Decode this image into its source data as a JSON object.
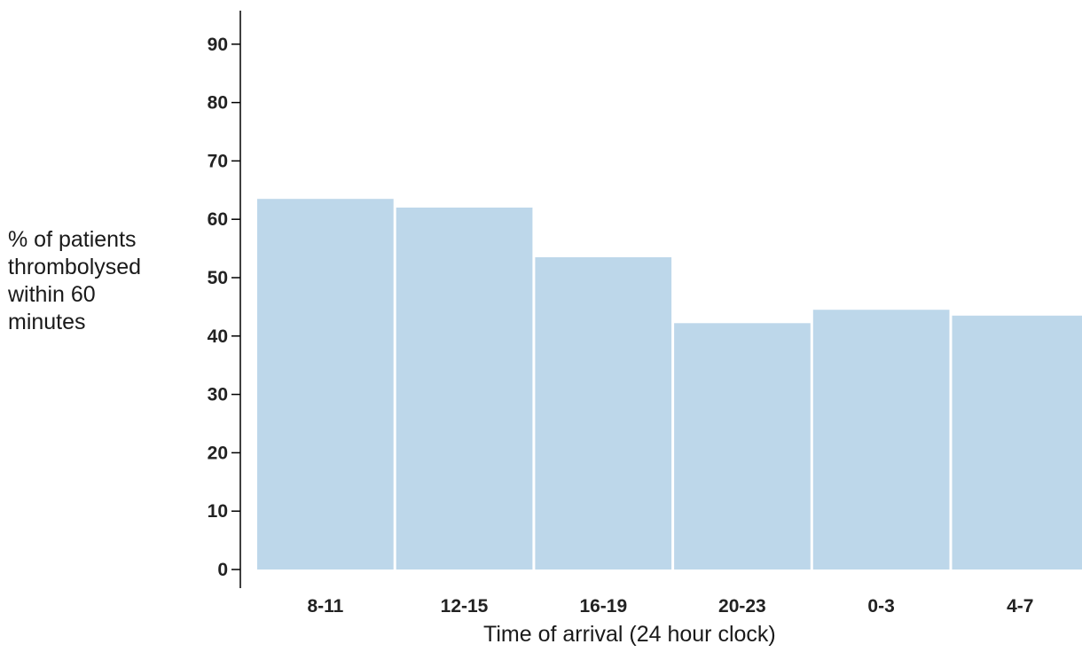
{
  "chart_data": {
    "type": "bar",
    "categories": [
      "8-11",
      "12-15",
      "16-19",
      "20-23",
      "0-3",
      "4-7"
    ],
    "values": [
      63.5,
      62.0,
      53.5,
      42.2,
      44.5,
      43.5
    ],
    "xlabel": "Time of arrival (24 hour clock)",
    "ylabel": "% of patients\nthrombolysed\nwithin 60\nminutes",
    "ylim": [
      0,
      95
    ],
    "yticks": [
      0,
      10,
      20,
      30,
      40,
      50,
      60,
      70,
      80,
      90
    ],
    "grid": false,
    "bar_color": "#bdd7ea"
  }
}
